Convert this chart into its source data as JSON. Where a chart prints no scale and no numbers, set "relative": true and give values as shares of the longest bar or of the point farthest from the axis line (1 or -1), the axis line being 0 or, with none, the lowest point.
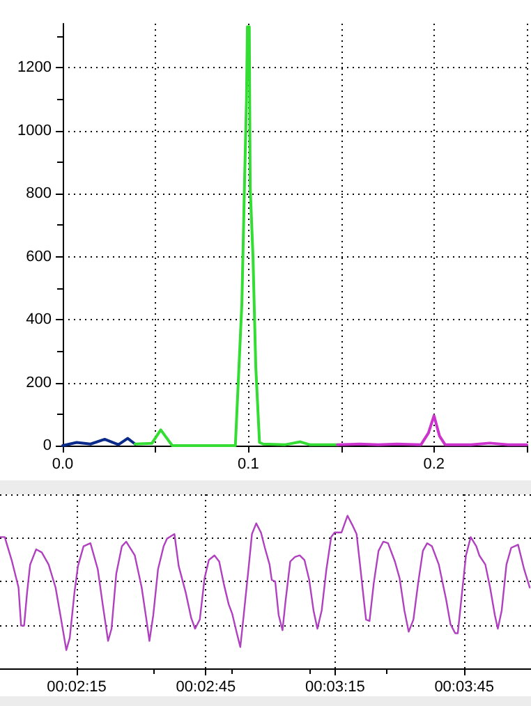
{
  "chart_data": [
    {
      "type": "line",
      "xlim": [
        0,
        0.25
      ],
      "xticks": [
        {
          "value": 0,
          "label": "0.0"
        },
        {
          "value": 0.05,
          "label": null
        },
        0.1,
        {
          "value": 0.15,
          "label": null
        },
        0.2,
        {
          "value": 0.25,
          "label": null
        }
      ],
      "ylim": [
        0,
        1340
      ],
      "yticks": [
        0,
        200,
        400,
        600,
        800,
        1000,
        1200
      ],
      "grid": true,
      "series": [
        {
          "color": "#0a2a8a",
          "x": [
            0,
            0.0075,
            0.015,
            0.0226,
            0.03,
            0.035,
            0.039
          ],
          "values": [
            0,
            10,
            5,
            20,
            3,
            23,
            5
          ]
        },
        {
          "color": "#33dd33",
          "x": [
            0.039,
            0.048,
            0.0528,
            0.059,
            0.093,
            0.0965,
            0.098,
            0.099,
            0.0995,
            0.1005,
            0.101,
            0.1025,
            0.104,
            0.106,
            0.108,
            0.12,
            0.128,
            0.133,
            0.148
          ],
          "values": [
            5,
            7,
            50,
            0,
            0,
            450,
            850,
            1100,
            1330,
            1330,
            820,
            600,
            250,
            10,
            5,
            3,
            12,
            3,
            3
          ]
        },
        {
          "color": "#cc33cc",
          "x": [
            0.148,
            0.16,
            0.17,
            0.18,
            0.193,
            0.197,
            0.2,
            0.203,
            0.206,
            0.22,
            0.23,
            0.24,
            0.25
          ],
          "values": [
            3,
            5,
            3,
            5,
            3,
            40,
            95,
            30,
            3,
            3,
            8,
            3,
            3
          ]
        }
      ]
    },
    {
      "type": "line",
      "relative": true,
      "tick_labels": "x",
      "grid": true,
      "xlim": [
        0.032556,
        0.066806
      ],
      "xticks": [
        {
          "value": 0.0375,
          "label": "00:02:15"
        },
        {
          "value": 0.045833,
          "label": "00:02:45"
        },
        {
          "value": 0.054167,
          "label": "00:03:15"
        },
        {
          "value": 0.0625,
          "label": "00:03:45"
        }
      ],
      "series": [
        {
          "color": "#b040c0",
          "x": [
            0.032556,
            0.032861,
            0.033306,
            0.03375,
            0.033917,
            0.034111,
            0.034306,
            0.0345,
            0.034889,
            0.03525,
            0.035694,
            0.036139,
            0.0365,
            0.036833,
            0.037056,
            0.037361,
            0.037583,
            0.037944,
            0.038389,
            0.038861,
            0.039194,
            0.039528,
            0.03975,
            0.040056,
            0.040417,
            0.040694,
            0.04125,
            0.041694,
            0.042,
            0.042194,
            0.042444,
            0.04275,
            0.043111,
            0.043333,
            0.043806,
            0.044083,
            0.044528,
            0.044889,
            0.045139,
            0.045444,
            0.04575,
            0.046028,
            0.046389,
            0.046694,
            0.047,
            0.047306,
            0.047528,
            0.047833,
            0.048056,
            0.048278,
            0.048583,
            0.048806,
            0.049083,
            0.049389,
            0.049639,
            0.049944,
            0.050083,
            0.050306,
            0.050528,
            0.050778,
            0.050972,
            0.051278,
            0.051583,
            0.051889,
            0.052194,
            0.0525,
            0.052778,
            0.053028,
            0.053306,
            0.053611,
            0.053917,
            0.054139,
            0.054583,
            0.054972,
            0.055278,
            0.055556,
            0.055778,
            0.056,
            0.056167,
            0.056389,
            0.056667,
            0.056972,
            0.057278,
            0.057583,
            0.058028,
            0.058333,
            0.058639,
            0.058917,
            0.059222,
            0.059528,
            0.059833,
            0.060111,
            0.060417,
            0.060861,
            0.061333,
            0.061611,
            0.061917,
            0.062083,
            0.062361,
            0.062611,
            0.062917,
            0.063278,
            0.063472,
            0.063861,
            0.064167,
            0.064472,
            0.064667,
            0.064917,
            0.065222,
            0.065528,
            0.065972,
            0.066361,
            0.066722
          ],
          "values": [
            0.86,
            0.86,
            0.71,
            0.53,
            0.28,
            0.28,
            0.5,
            0.68,
            0.78,
            0.76,
            0.68,
            0.53,
            0.32,
            0.12,
            0.2,
            0.5,
            0.67,
            0.8,
            0.82,
            0.65,
            0.41,
            0.18,
            0.26,
            0.62,
            0.8,
            0.83,
            0.74,
            0.53,
            0.32,
            0.18,
            0.35,
            0.65,
            0.8,
            0.85,
            0.88,
            0.67,
            0.5,
            0.33,
            0.26,
            0.32,
            0.59,
            0.71,
            0.74,
            0.7,
            0.55,
            0.42,
            0.36,
            0.23,
            0.14,
            0.35,
            0.65,
            0.88,
            0.95,
            0.89,
            0.79,
            0.68,
            0.58,
            0.57,
            0.35,
            0.25,
            0.44,
            0.7,
            0.73,
            0.74,
            0.71,
            0.58,
            0.38,
            0.26,
            0.38,
            0.65,
            0.86,
            0.89,
            0.89,
            1,
            0.94,
            0.88,
            0.68,
            0.47,
            0.32,
            0.31,
            0.56,
            0.77,
            0.83,
            0.82,
            0.7,
            0.59,
            0.38,
            0.24,
            0.32,
            0.56,
            0.77,
            0.82,
            0.8,
            0.68,
            0.45,
            0.29,
            0.23,
            0.23,
            0.5,
            0.74,
            0.86,
            0.8,
            0.74,
            0.68,
            0.53,
            0.35,
            0.26,
            0.38,
            0.68,
            0.79,
            0.81,
            0.65,
            0.53
          ]
        }
      ]
    }
  ]
}
